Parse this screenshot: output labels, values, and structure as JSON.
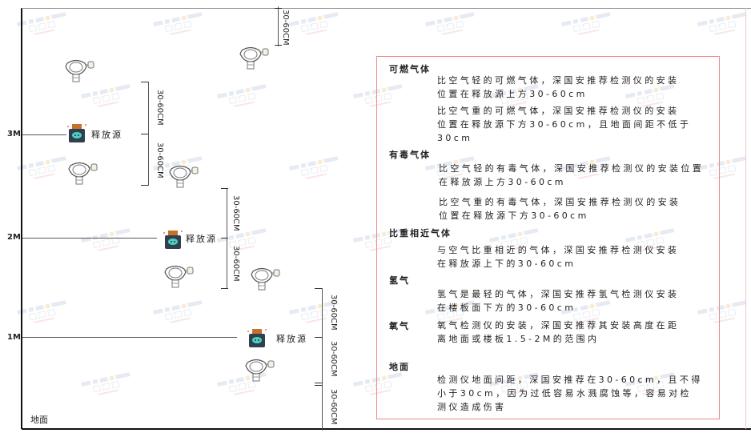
{
  "watermark": {
    "brand": "SINGOAN",
    "cn": "深国安"
  },
  "levels": [
    "3M",
    "2M",
    "1M"
  ],
  "floor_label": "地面",
  "source_label": "释放源",
  "dimension_label": "30-60CM",
  "info": {
    "sections": [
      {
        "title": "可燃气体",
        "paragraphs": [
          [
            "比空气轻的可燃气体，深国安推荐检测仪的安装",
            "位置在释放源上方30-60cm"
          ],
          [
            "比空气重的可燃气体，深国安推荐检测仪的安装",
            "位置在释放源下方30-60cm，且地面间距不低于",
            "30cm"
          ]
        ]
      },
      {
        "title": "有毒气体",
        "paragraphs": [
          [
            "比空气轻的有毒气体，深国安推荐检测仪的安装位置",
            "在释放源上方30-60cm"
          ],
          [
            "比空气重的有毒气体，深国安推荐检测仪的安装",
            "位置在释放源下方30-60cm"
          ]
        ]
      },
      {
        "title": "比重相近气体",
        "paragraphs": [
          [
            "与空气比重相近的气体，深国安推荐检测仪安装",
            "在释放源上下的30-60cm"
          ]
        ]
      },
      {
        "title": "氢气",
        "paragraphs": [
          [
            "氢气是最轻的气体，深国安推荐氢气检测仪安装",
            "在楼板面下方的30-60cm"
          ]
        ]
      },
      {
        "title": "氧气",
        "paragraphs": [
          [
            "氧气检测仪的安装，深国安推荐其安装高度在距",
            "离地面或楼板1.5-2M的范围内"
          ]
        ]
      },
      {
        "title": "地面",
        "paragraphs": [
          [
            "检测仪地面间距，深国安推荐在30-60cm，且不得",
            "小于30cm，因为过低容易水溅腐蚀等，容易对检",
            "测仪造成伤害"
          ]
        ]
      }
    ]
  },
  "colors": {
    "box_border": "#e88888",
    "source_body": "#2f4050",
    "source_cap": "#c8702a",
    "source_face": "#4fd0c0"
  }
}
